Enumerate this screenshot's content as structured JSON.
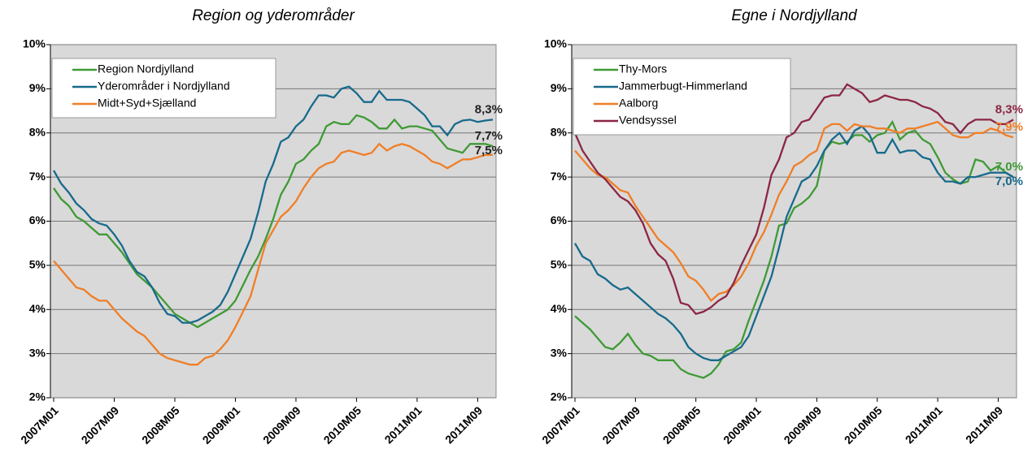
{
  "chart_data": [
    {
      "type": "line",
      "title": "Region og yderområder",
      "categories": [
        "2007M01",
        null,
        null,
        null,
        null,
        null,
        null,
        null,
        "2007M09",
        null,
        null,
        null,
        null,
        null,
        null,
        null,
        "2008M05",
        null,
        null,
        null,
        null,
        null,
        null,
        null,
        "2009M01",
        null,
        null,
        null,
        null,
        null,
        null,
        null,
        "2009M09",
        null,
        null,
        null,
        null,
        null,
        null,
        null,
        "2010M05",
        null,
        null,
        null,
        null,
        null,
        null,
        null,
        "2011M01",
        null,
        null,
        null,
        null,
        null,
        null,
        null,
        "2011M09",
        null,
        null
      ],
      "ylim": [
        2,
        10
      ],
      "yticks": [
        {
          "value": 2,
          "label": "2%"
        },
        {
          "value": 3,
          "label": "3%"
        },
        {
          "value": 4,
          "label": "4%"
        },
        {
          "value": 5,
          "label": "5%"
        },
        {
          "value": 6,
          "label": "6%"
        },
        {
          "value": 7,
          "label": "7%"
        },
        {
          "value": 8,
          "label": "8%"
        },
        {
          "value": 9,
          "label": "9%"
        },
        {
          "value": 10,
          "label": "10%"
        }
      ],
      "grid": true,
      "legend": "upper left",
      "end_labels_colored": false,
      "series": [
        {
          "name": "Region Nordjylland",
          "color": "#3f9a35",
          "end_label": "7,7%",
          "values": [
            6.75,
            6.5,
            6.35,
            6.1,
            6.0,
            5.85,
            5.7,
            5.7,
            5.5,
            5.3,
            5.05,
            4.8,
            4.65,
            4.5,
            4.3,
            4.1,
            3.9,
            3.8,
            3.7,
            3.6,
            3.7,
            3.8,
            3.9,
            4.0,
            4.2,
            4.55,
            4.9,
            5.2,
            5.6,
            6.05,
            6.6,
            6.9,
            7.3,
            7.4,
            7.6,
            7.75,
            8.15,
            8.25,
            8.2,
            8.2,
            8.4,
            8.35,
            8.25,
            8.1,
            8.1,
            8.3,
            8.1,
            8.15,
            8.15,
            8.1,
            8.05,
            7.85,
            7.65,
            7.6,
            7.55,
            7.75,
            7.75,
            7.75,
            7.7
          ]
        },
        {
          "name": "Yderområder i Nordjylland",
          "color": "#176a8c",
          "end_label": "8,3%",
          "values": [
            7.15,
            6.85,
            6.65,
            6.4,
            6.25,
            6.05,
            5.95,
            5.9,
            5.7,
            5.45,
            5.1,
            4.85,
            4.75,
            4.5,
            4.15,
            3.9,
            3.85,
            3.7,
            3.7,
            3.75,
            3.85,
            3.95,
            4.1,
            4.4,
            4.8,
            5.2,
            5.6,
            6.2,
            6.9,
            7.3,
            7.8,
            7.9,
            8.15,
            8.3,
            8.6,
            8.85,
            8.85,
            8.8,
            9.0,
            9.05,
            8.9,
            8.7,
            8.7,
            8.95,
            8.75,
            8.75,
            8.75,
            8.7,
            8.55,
            8.4,
            8.15,
            8.15,
            7.95,
            8.2,
            8.28,
            8.3,
            8.25,
            8.28,
            8.3
          ]
        },
        {
          "name": "Midt+Syd+Sjælland",
          "color": "#f07e26",
          "end_label": "7,5%",
          "values": [
            5.1,
            4.9,
            4.7,
            4.5,
            4.45,
            4.3,
            4.2,
            4.2,
            4.0,
            3.8,
            3.65,
            3.5,
            3.4,
            3.2,
            3.0,
            2.9,
            2.85,
            2.8,
            2.75,
            2.75,
            2.9,
            2.95,
            3.1,
            3.3,
            3.6,
            3.95,
            4.3,
            4.9,
            5.5,
            5.8,
            6.1,
            6.25,
            6.45,
            6.75,
            7.0,
            7.2,
            7.3,
            7.35,
            7.55,
            7.6,
            7.55,
            7.5,
            7.55,
            7.75,
            7.6,
            7.7,
            7.75,
            7.7,
            7.6,
            7.5,
            7.35,
            7.3,
            7.2,
            7.3,
            7.4,
            7.4,
            7.45,
            7.5,
            7.5
          ]
        }
      ]
    },
    {
      "type": "line",
      "title": "Egne i Nordjylland",
      "categories": [
        "2007M01",
        null,
        null,
        null,
        null,
        null,
        null,
        null,
        "2007M09",
        null,
        null,
        null,
        null,
        null,
        null,
        null,
        "2008M05",
        null,
        null,
        null,
        null,
        null,
        null,
        null,
        "2009M01",
        null,
        null,
        null,
        null,
        null,
        null,
        null,
        "2009M09",
        null,
        null,
        null,
        null,
        null,
        null,
        null,
        "2010M05",
        null,
        null,
        null,
        null,
        null,
        null,
        null,
        "2011M01",
        null,
        null,
        null,
        null,
        null,
        null,
        null,
        "2011M09",
        null,
        null
      ],
      "ylim": [
        2,
        10
      ],
      "yticks": [
        {
          "value": 2,
          "label": "2%"
        },
        {
          "value": 3,
          "label": "3%"
        },
        {
          "value": 4,
          "label": "4%"
        },
        {
          "value": 5,
          "label": "5%"
        },
        {
          "value": 6,
          "label": "6%"
        },
        {
          "value": 7,
          "label": "7%"
        },
        {
          "value": 8,
          "label": "8%"
        },
        {
          "value": 9,
          "label": "9%"
        },
        {
          "value": 10,
          "label": "10%"
        }
      ],
      "grid": true,
      "legend": "upper left",
      "end_labels_colored": true,
      "series": [
        {
          "name": "Thy-Mors",
          "color": "#3f9a35",
          "end_label": "7,0%",
          "values": [
            3.85,
            3.7,
            3.55,
            3.35,
            3.15,
            3.1,
            3.25,
            3.45,
            3.2,
            3.0,
            2.95,
            2.85,
            2.85,
            2.85,
            2.65,
            2.55,
            2.5,
            2.45,
            2.55,
            2.75,
            3.05,
            3.1,
            3.25,
            3.75,
            4.2,
            4.65,
            5.2,
            5.9,
            5.95,
            6.3,
            6.4,
            6.55,
            6.8,
            7.6,
            7.8,
            7.75,
            7.8,
            7.95,
            7.95,
            7.8,
            7.95,
            8.0,
            8.25,
            7.85,
            8.0,
            8.05,
            7.85,
            7.75,
            7.45,
            7.1,
            6.95,
            6.85,
            6.9,
            7.4,
            7.35,
            7.15,
            7.25,
            7.1,
            7.0
          ]
        },
        {
          "name": "Jammerbugt-Himmerland",
          "color": "#176a8c",
          "end_label": "7,0%",
          "values": [
            5.5,
            5.2,
            5.1,
            4.8,
            4.7,
            4.55,
            4.45,
            4.5,
            4.35,
            4.2,
            4.05,
            3.9,
            3.8,
            3.65,
            3.45,
            3.15,
            3.0,
            2.9,
            2.85,
            2.85,
            2.95,
            3.05,
            3.15,
            3.4,
            3.85,
            4.3,
            4.75,
            5.4,
            6.1,
            6.5,
            6.9,
            7.0,
            7.25,
            7.6,
            7.85,
            8.0,
            7.75,
            8.05,
            8.15,
            7.95,
            7.55,
            7.55,
            7.85,
            7.55,
            7.6,
            7.6,
            7.45,
            7.4,
            7.1,
            6.9,
            6.9,
            6.85,
            7.0,
            7.0,
            7.05,
            7.1,
            7.1,
            7.1,
            7.0
          ]
        },
        {
          "name": "Aalborg",
          "color": "#f07e26",
          "end_label": "7,9%",
          "values": [
            7.6,
            7.4,
            7.2,
            7.05,
            7.0,
            6.85,
            6.7,
            6.65,
            6.35,
            6.1,
            5.85,
            5.6,
            5.45,
            5.3,
            5.05,
            4.75,
            4.65,
            4.45,
            4.2,
            4.35,
            4.4,
            4.55,
            4.75,
            5.05,
            5.45,
            5.75,
            6.15,
            6.6,
            6.9,
            7.25,
            7.35,
            7.5,
            7.6,
            8.1,
            8.2,
            8.2,
            8.05,
            8.2,
            8.15,
            8.15,
            8.1,
            8.1,
            8.05,
            8.0,
            8.1,
            8.1,
            8.15,
            8.2,
            8.25,
            8.1,
            7.95,
            7.9,
            7.9,
            8.0,
            8.0,
            8.1,
            8.05,
            7.95,
            7.9
          ]
        },
        {
          "name": "Vendsyssel",
          "color": "#8c2644",
          "end_label": "8,3%",
          "values": [
            8.0,
            7.6,
            7.35,
            7.1,
            6.95,
            6.75,
            6.55,
            6.45,
            6.25,
            5.95,
            5.5,
            5.25,
            5.1,
            4.7,
            4.15,
            4.1,
            3.9,
            3.95,
            4.05,
            4.2,
            4.3,
            4.6,
            5.0,
            5.35,
            5.7,
            6.3,
            7.05,
            7.4,
            7.9,
            8.0,
            8.25,
            8.3,
            8.55,
            8.8,
            8.85,
            8.85,
            9.1,
            9.0,
            8.9,
            8.7,
            8.75,
            8.85,
            8.8,
            8.75,
            8.75,
            8.7,
            8.6,
            8.55,
            8.45,
            8.25,
            8.2,
            8.0,
            8.2,
            8.3,
            8.3,
            8.3,
            8.2,
            8.2,
            8.3
          ]
        }
      ]
    }
  ]
}
